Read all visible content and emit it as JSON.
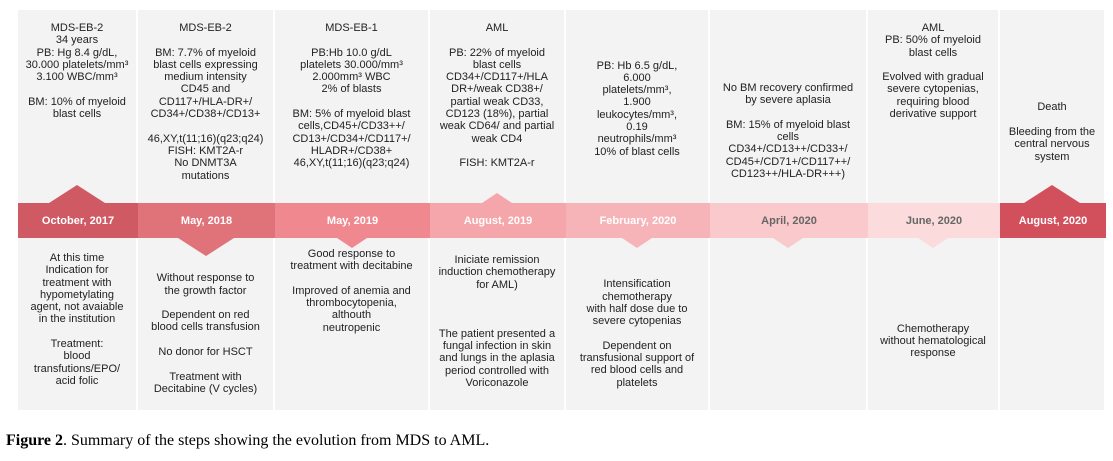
{
  "colors": [
    "#d05a64",
    "#e0737a",
    "#f08890",
    "#f5a6aa",
    "#f7b4b8",
    "#f9c9cb",
    "#fbdbdc",
    "#d24f5c"
  ],
  "stages": [
    {
      "date": "October, 2017",
      "top": "MDS-EB-2\n34 years\nPB: Hg 8.4 g/dL,\n30.000 platelets/mm³\n3.100 WBC/mm³\n\nBM: 10% of myeloid\nblast cells",
      "bottom": "At this time\nIndication for\ntreatment with\nhypometylating\nagent, not avaiable\nin the institution\n\nTreatment:\nblood\ntransfutions/EPO/\nacid folic"
    },
    {
      "date": "May, 2018",
      "top": "MDS-EB-2\n\nBM: 7.7% of myeloid\nblast cells expressing\nmedium intensity\nCD45 and\nCD117+/HLA-DR+/\nCD34+/CD38+/CD13+\n\n46,XY,t(11;16)(q23;q24)\nFISH: KMT2A-r\nNo DNMT3A\nmutations",
      "bottom": "\nWithout response to\nthe growth factor\n\nDependent on red\nblood cells transfusion\n\nNo donor for HSCT\n\nTreatment with\nDecitabine (V cycles)"
    },
    {
      "date": "May, 2019",
      "top": "MDS-EB-1\n\nPB:Hb 10.0 g/dL\nplatelets 30.000/mm³\n2.000mm³ WBC\n2% of blasts\n\nBM: 5% of myeloid blast\ncells,CD45+/CD33++/\nCD13+/CD34+/CD117+/\nHLADR+/CD38+\n46,XY,t(11;16)(q23;q24)",
      "bottom": "Good response to\ntreatment with decitabine\n\nImproved of anemia and\nthrombocytopenia,\nalthouth\nneutropenic"
    },
    {
      "date": "August, 2019",
      "top": "AML\n\nPB: 22% of myeloid\nblast cells\nCD34+/CD117+/HLA\nDR+/weak CD38+/\npartial weak CD33,\nCD123 (18%), partial\nweak CD64/ and partial\nweak CD4\n\nFISH: KMT2A-r",
      "bottom": "Iniciate remission\ninduction chemotherapy\nfor AML)\n\n\n\nThe patient presented a\nfungal infection in skin\nand lungs in the aplasia\nperiod controlled with\nVoriconazole"
    },
    {
      "date": "February, 2020",
      "top": "\n\nPB: Hb  6.5 g/dL,\n6.000\nplatelets/mm³,\n1.900\nleukocytes/mm³,\n0.19\nneutrophils/mm³\n10% of blast cells",
      "bottom": "\nIntensification\nchemotherapy\nwith half dose due to\nsevere cytopenias\n\nDependent on\ntransfusional support of\nred blood cells and\nplatelets"
    },
    {
      "date": "April,  2020",
      "top": "\n\n\nNo BM recovery confirmed\nby severe aplasia\n\nBM: 15% of myeloid blast\ncells\nCD34+/CD13++/CD33+/\nCD45+/CD71+/CD117++/\nCD123++/HLA-DR+++)",
      "bottom": ""
    },
    {
      "date": "June,  2020",
      "top": "AML\nPB: 50% of myeloid\nblast cells\n\nEvolved with gradual\nsevere cytopenias,\nrequiring blood\nderivative support",
      "bottom": "\n\n\nChemotherapy\nwithout hematological\nresponse"
    },
    {
      "date": "August, 2020",
      "top": "\n\n\n\n\nDeath\n\nBleeding from the\ncentral nervous\nsystem",
      "bottom": ""
    }
  ],
  "caption": {
    "label": "Figure 2",
    "text": ". Summary of the steps showing the evolution from MDS to AML."
  }
}
